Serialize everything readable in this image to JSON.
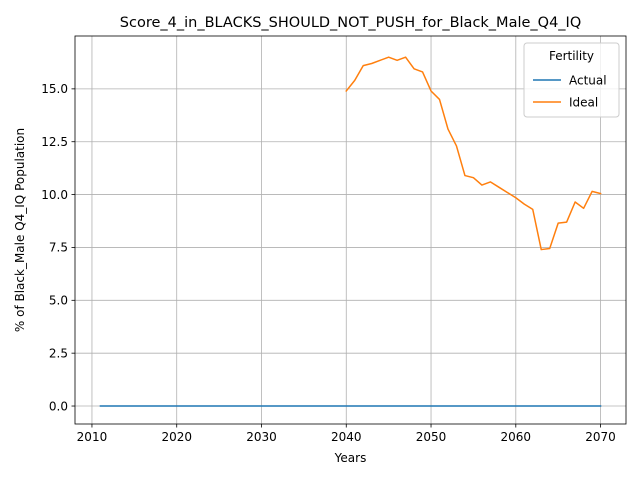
{
  "chart_data": {
    "type": "line",
    "title": "Score_4_in_BLACKS_SHOULD_NOT_PUSH_for_Black_Male_Q4_IQ",
    "xlabel": "Years",
    "ylabel": "% of Black_Male Q4_IQ Population",
    "xlim": [
      2008,
      2073
    ],
    "ylim": [
      -0.85,
      17.5
    ],
    "xticks": [
      2010,
      2020,
      2030,
      2040,
      2050,
      2060,
      2070
    ],
    "xtick_labels": [
      "2010",
      "2020",
      "2030",
      "2040",
      "2050",
      "2060",
      "2070"
    ],
    "yticks": [
      0.0,
      2.5,
      5.0,
      7.5,
      10.0,
      12.5,
      15.0
    ],
    "ytick_labels": [
      "0.0",
      "2.5",
      "5.0",
      "7.5",
      "10.0",
      "12.5",
      "15.0"
    ],
    "grid": true,
    "legend": {
      "title": "Fertility",
      "placement": "top-right"
    },
    "series": [
      {
        "name": "Actual",
        "color": "#1f77b4",
        "x": [
          2011,
          2070
        ],
        "y": [
          0.0,
          0.0
        ]
      },
      {
        "name": "Ideal",
        "color": "#ff7f0e",
        "x": [
          2040,
          2041,
          2042,
          2043,
          2044,
          2045,
          2046,
          2047,
          2048,
          2049,
          2050,
          2051,
          2052,
          2053,
          2054,
          2055,
          2056,
          2057,
          2058,
          2059,
          2060,
          2061,
          2062,
          2063,
          2064,
          2065,
          2066,
          2067,
          2068,
          2069,
          2070
        ],
        "y": [
          14.9,
          15.4,
          16.1,
          16.2,
          16.35,
          16.5,
          16.35,
          16.5,
          15.95,
          15.8,
          14.9,
          14.5,
          13.1,
          12.3,
          10.9,
          10.8,
          10.45,
          10.6,
          10.35,
          10.1,
          9.85,
          9.55,
          9.3,
          7.4,
          7.45,
          8.65,
          8.7,
          9.65,
          9.35,
          10.15,
          10.05
        ]
      }
    ]
  }
}
